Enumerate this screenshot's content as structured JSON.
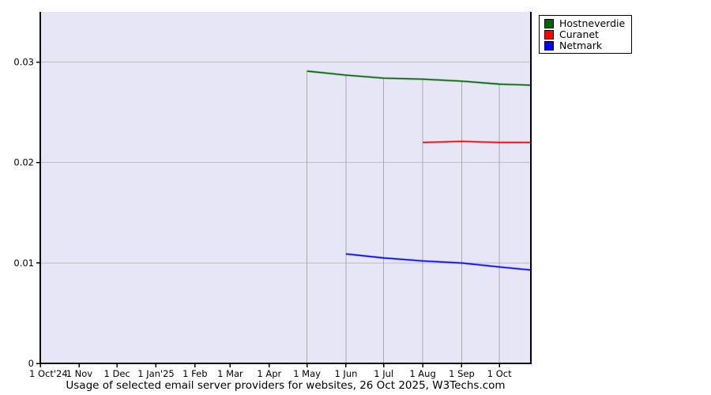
{
  "chart_data": {
    "type": "line",
    "title": "Usage of selected email server providers for websites, 26 Oct 2025, W3Techs.com",
    "xlabel": "",
    "ylabel": "",
    "ylim": [
      0,
      0.035
    ],
    "grid": true,
    "legend_position": "outside-top-right",
    "plot_bg_color": "#e6e6f7",
    "h_gridline_color": "#bdbdbd",
    "v_gridline_color": "#ababab",
    "axis_color": "#000000",
    "yticks": [
      0,
      0.01,
      0.02,
      0.03
    ],
    "ytick_labels": [
      "0",
      "0.01",
      "0.02",
      "0.03"
    ],
    "xtick_labels": [
      "1 Oct'24",
      "1 Nov",
      "1 Dec",
      "1 Jan'25",
      "1 Feb",
      "1 Mar",
      "1 Apr",
      "1 May",
      "1 Jun",
      "1 Jul",
      "1 Aug",
      "1 Sep",
      "1 Oct"
    ],
    "xtick_days": [
      0,
      31,
      61,
      92,
      123,
      151,
      182,
      212,
      243,
      273,
      304,
      335,
      365
    ],
    "x_total_days": 390,
    "series": [
      {
        "name": "Hostneverdie",
        "color": "#006600",
        "x_days": [
          212,
          243,
          273,
          304,
          335,
          365,
          390
        ],
        "x_labels": [
          "1 May",
          "1 Jun",
          "1 Jul",
          "1 Aug",
          "1 Sep",
          "1 Oct",
          "26 Oct"
        ],
        "values": [
          0.0291,
          0.0287,
          0.0284,
          0.0283,
          0.0281,
          0.0278,
          0.0277
        ]
      },
      {
        "name": "Curanet",
        "color": "#ff0000",
        "x_days": [
          304,
          335,
          365,
          390
        ],
        "x_labels": [
          "1 Aug",
          "1 Sep",
          "1 Oct",
          "26 Oct"
        ],
        "values": [
          0.022,
          0.0221,
          0.022,
          0.022
        ]
      },
      {
        "name": "Netmark",
        "color": "#0000ff",
        "x_days": [
          243,
          273,
          304,
          335,
          365,
          390
        ],
        "x_labels": [
          "1 Jun",
          "1 Jul",
          "1 Aug",
          "1 Sep",
          "1 Oct",
          "26 Oct"
        ],
        "values": [
          0.0109,
          0.0105,
          0.0102,
          0.01,
          0.0096,
          0.0093
        ]
      }
    ]
  }
}
